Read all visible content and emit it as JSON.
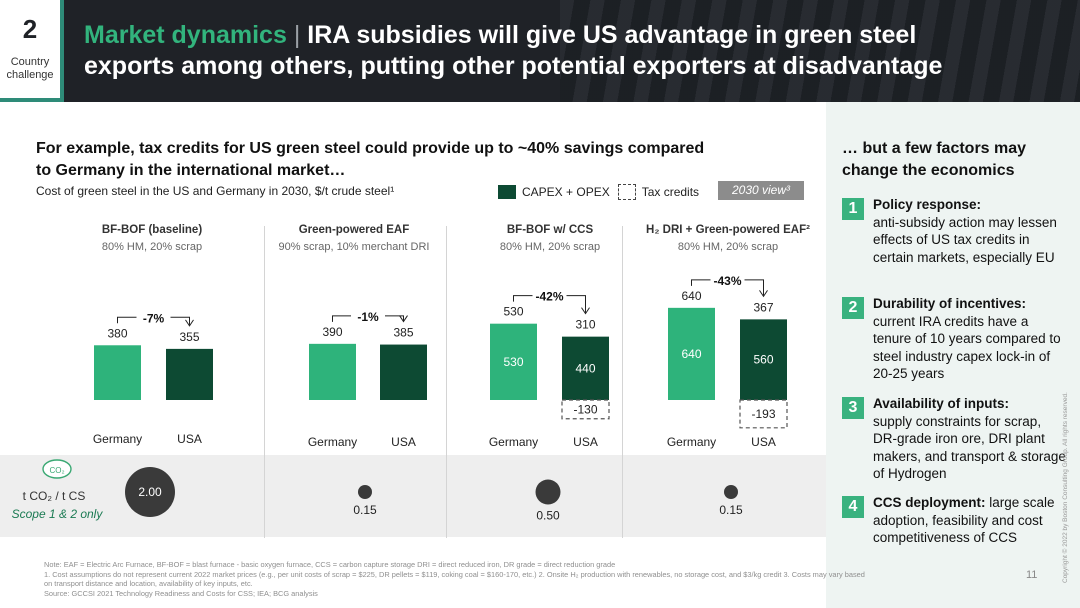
{
  "header": {
    "section_number": "2",
    "section_label_line1": "Country",
    "section_label_line2": "challenge",
    "title_accent": "Market dynamics",
    "title_separator": "|",
    "title_line1_rest": "IRA subsidies will give US advantage in green steel",
    "title_line2": "exports among others, putting other potential exporters at disadvantage"
  },
  "left": {
    "heading_line1": "For example, tax credits for US green steel could provide up to ~40% savings compared",
    "heading_line2": "to Germany in the international market…",
    "subtitle": "Cost of green steel in the US and Germany in 2030, $/t crude steel¹",
    "legend_capex": "CAPEX + OPEX",
    "legend_tax": "Tax credits",
    "view_tag": "2030 view³"
  },
  "colors": {
    "germany_bar": "#2eb37b",
    "usa_bar": "#0d4a33",
    "accent": "#39b27f"
  },
  "chart_data": {
    "type": "bar",
    "unit": "$/t crude steel",
    "categories": [
      "Germany",
      "USA"
    ],
    "ylim": [
      0,
      700
    ],
    "groups": [
      {
        "title": "BF-BOF (baseline)",
        "subtitle": "80% HM, 20% scrap",
        "germany": {
          "label": "380",
          "value": 380,
          "inner_label": ""
        },
        "usa": {
          "label": "355",
          "value": 355,
          "inner_label": ""
        },
        "tax_credit": null,
        "tax_label": "",
        "savings": "-7%",
        "co2": 2.0,
        "co2_label": "2.00"
      },
      {
        "title": "Green-powered EAF",
        "subtitle": "90% scrap, 10% merchant DRI",
        "germany": {
          "label": "390",
          "value": 390,
          "inner_label": ""
        },
        "usa": {
          "label": "385",
          "value": 385,
          "inner_label": ""
        },
        "tax_credit": null,
        "tax_label": "",
        "savings": "-1%",
        "co2": null,
        "co2_label": ""
      },
      {
        "title": "BF-BOF w/ CCS",
        "subtitle": "80% HM, 20% scrap",
        "germany": {
          "label": "530",
          "value": 530,
          "inner_label": "530"
        },
        "usa": {
          "label": "310",
          "value": 440,
          "inner_label": "440"
        },
        "tax_credit": -130,
        "tax_label": "-130",
        "savings": "-42%",
        "co2": 0.5,
        "co2_label": "0.50"
      },
      {
        "title": "H₂ DRI + Green-powered EAF²",
        "subtitle": "80% HM, 20% scrap",
        "germany": {
          "label": "640",
          "value": 640,
          "inner_label": "640"
        },
        "usa": {
          "label": "367",
          "value": 560,
          "inner_label": "560"
        },
        "tax_credit": -193,
        "tax_label": "-193",
        "savings": "-43%",
        "co2": 0.15,
        "co2_label": "0.15"
      }
    ],
    "co2_row": {
      "icon_text": "CO₂",
      "unit_label": "t CO₂ / t CS",
      "scope_label": "Scope 1 & 2 only",
      "markers": [
        {
          "group": 0,
          "value": 2.0,
          "label": "2.00"
        },
        {
          "group": 1,
          "value": 0.15,
          "label": "0.15"
        },
        {
          "group": 2,
          "value": 0.5,
          "label": "0.50"
        },
        {
          "group": 3,
          "value": 0.15,
          "label": "0.15"
        }
      ]
    }
  },
  "right": {
    "heading_line1": "… but a few factors may",
    "heading_line2": "change the economics",
    "factors": [
      {
        "num": "1",
        "bold": "Policy response:",
        "text": "anti-subsidy action may lessen effects of US tax credits in certain markets, especially EU"
      },
      {
        "num": "2",
        "bold": "Durability of incentives:",
        "text": "current IRA credits have a tenure of 10 years compared to steel industry capex lock-in of 20-25 years"
      },
      {
        "num": "3",
        "bold": "Availability of inputs:",
        "text": "supply constraints for scrap, DR-grade iron ore, DRI plant makers, and transport & storage of Hydrogen"
      },
      {
        "num": "4",
        "bold": "CCS deployment:",
        "text": "large scale adoption, feasibility and cost competitiveness of CCS"
      }
    ]
  },
  "footer": {
    "note1": "Note: EAF = Electric Arc Furnace, BF-BOF = blast furnace - basic oxygen furnace, CCS = carbon capture storage DRI = direct reduced iron, DR grade = direct reduction grade",
    "note2": "1. Cost assumptions do not represent current 2022 market prices (e.g., per unit costs of scrap = $225, DR pellets = $119, coking coal = $160-170, etc.) 2. Onsite H₂ production with renewables, no storage cost, and $3/kg credit 3. Costs may vary based",
    "note3": "on transport distance and location, availability of key inputs, etc.",
    "source": "Source: GCCSI 2021 Technology Readiness and Costs for CSS; IEA; BCG analysis",
    "page_number": "11",
    "copyright": "Copyright © 2022 by Boston Consulting Group. All rights reserved."
  }
}
